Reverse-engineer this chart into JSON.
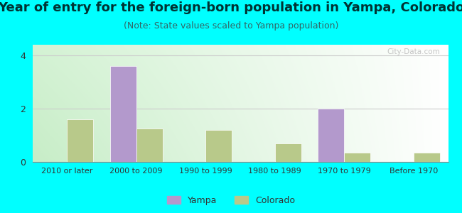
{
  "title": "Year of entry for the foreign-born population in Yampa, Colorado",
  "subtitle": "(Note: State values scaled to Yampa population)",
  "categories": [
    "2010 or later",
    "2000 to 2009",
    "1990 to 1999",
    "1980 to 1989",
    "1970 to 1979",
    "Before 1970"
  ],
  "yampa_values": [
    0,
    3.6,
    0,
    0,
    2.0,
    0
  ],
  "colorado_values": [
    1.6,
    1.25,
    1.2,
    0.7,
    0.35,
    0.35
  ],
  "yampa_color": "#b399cc",
  "colorado_color": "#b8c98a",
  "ylim": [
    0,
    4.4
  ],
  "yticks": [
    0,
    2,
    4
  ],
  "fig_bg_color": "#00ffff",
  "plot_bg_left": "#c8f0c8",
  "plot_bg_right": "#f0fff0",
  "grid_color": "#cccccc",
  "title_fontsize": 13,
  "subtitle_fontsize": 9,
  "bar_width": 0.38,
  "watermark_text": "City-Data.com"
}
